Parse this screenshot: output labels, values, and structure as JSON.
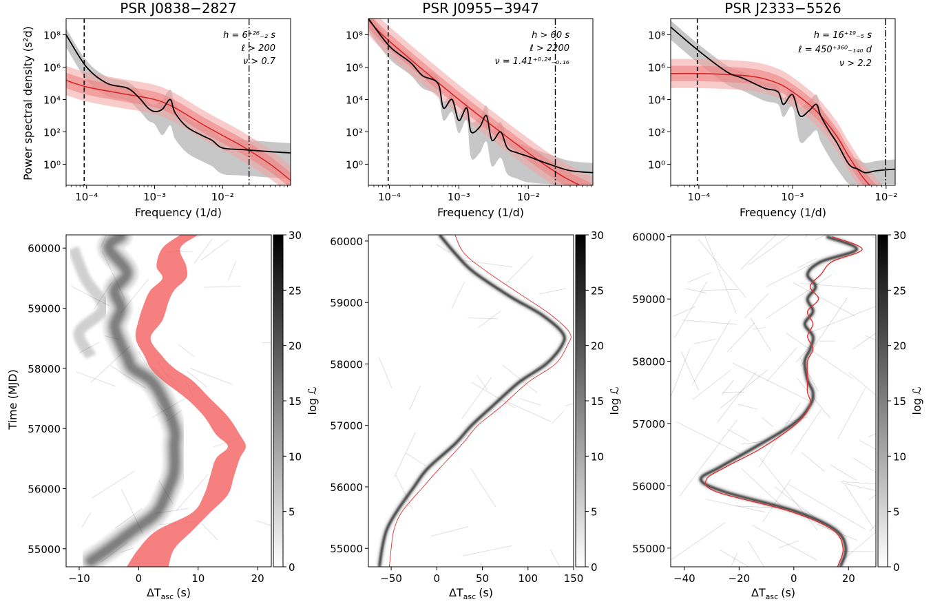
{
  "figure": {
    "panels": [
      {
        "title": "PSR J0838−2827",
        "annotations": [
          "h = 6⁺²⁶₋₂ s",
          "ℓ > 200",
          "ν > 0.7"
        ],
        "bottom_cbar_ticks": [
          "0",
          "5",
          "10",
          "15",
          "20",
          "25",
          "30"
        ]
      },
      {
        "title": "PSR J0955−3947",
        "annotations": [
          "h > 60 s",
          "ℓ > 2200",
          "ν = 1.41⁺⁰·²⁴₋₀.₁₆"
        ],
        "bottom_cbar_ticks": [
          "0",
          "5",
          "10",
          "15",
          "20",
          "25",
          "30"
        ]
      },
      {
        "title": "PSR J2333−5526",
        "annotations": [
          "h = 16⁺¹⁹₋₅ s",
          "ℓ = 450⁺³⁶⁰₋₁₄₀ d",
          "ν > 2.2"
        ],
        "bottom_cbar_ticks": [
          "0",
          "5",
          "10",
          "15",
          "20",
          "25",
          "30"
        ]
      }
    ],
    "top_ylabel": "Power spectral density (s²d)",
    "top_xlabel": "Frequency (1/d)",
    "bottom_ylabel": "Time (MJD)",
    "bottom_xlabel": "ΔT",
    "bottom_xlabel_sub": "asc",
    "bottom_xlabel_unit": "(s)",
    "cbar_label": "log ℒ",
    "psd_yticks": [
      "10⁰",
      "10²",
      "10⁴",
      "10⁶",
      "10⁸"
    ],
    "psd_xticks": [
      "10⁻⁴",
      "10⁻³",
      "10⁻²"
    ]
  },
  "chart_data": [
    {
      "type": "line",
      "panel": "PSR J0838−2827 PSD",
      "xscale": "log",
      "yscale": "log",
      "xlim": [
        5e-05,
        0.1
      ],
      "ylim": [
        0.05,
        1000000000
      ],
      "vlines": {
        "dashed": 9.23e-05,
        "dashdot": 0.0245
      },
      "series": [
        {
          "role": "data",
          "color": "#000000",
          "x": [
            5e-05,
            0.0001,
            0.0002,
            0.0004,
            0.0006,
            0.0008,
            0.001,
            0.0013,
            0.0017,
            0.002,
            0.003,
            0.005,
            0.007,
            0.01,
            0.02,
            0.05,
            0.1
          ],
          "y": [
            100000000,
            1000000,
            100000,
            50000,
            12000,
            3000,
            1800,
            2500,
            10000,
            1500,
            200,
            60,
            30,
            10,
            8,
            6,
            5
          ]
        },
        {
          "role": "model",
          "color": "#d62728",
          "x": [
            5e-05,
            0.0001,
            0.0003,
            0.001,
            0.002,
            0.005,
            0.01,
            0.02,
            0.05,
            0.1
          ],
          "y": [
            150000,
            60000,
            25000,
            10000,
            3000,
            300,
            60,
            12,
            1,
            0.1
          ]
        }
      ]
    },
    {
      "type": "line",
      "panel": "PSR J0955−3947 PSD",
      "xscale": "log",
      "yscale": "log",
      "xlim": [
        5e-05,
        0.085
      ],
      "ylim": [
        0.05,
        1000000000
      ],
      "vlines": {
        "dashed": 9.63e-05,
        "dashdot": 0.0245
      },
      "series": [
        {
          "role": "data",
          "color": "#000000",
          "x": [
            5e-05,
            0.0001,
            0.0002,
            0.0003,
            0.0005,
            0.0006,
            0.0008,
            0.001,
            0.0013,
            0.0015,
            0.002,
            0.0025,
            0.003,
            0.004,
            0.005,
            0.007,
            0.01,
            0.02,
            0.04,
            0.085
          ],
          "y": [
            1000000000,
            20000000,
            2000000,
            300000,
            100000,
            3000,
            10000,
            500,
            3000,
            100,
            200,
            1000,
            30,
            100,
            10,
            5,
            3,
            1,
            0.4,
            0.3
          ]
        },
        {
          "role": "model",
          "color": "#d62728",
          "x": [
            5e-05,
            0.0001,
            0.001,
            0.01,
            0.03,
            0.085
          ],
          "y": [
            800000000,
            40000000,
            10000,
            5,
            0.2,
            0.02
          ]
        }
      ]
    },
    {
      "type": "line",
      "panel": "PSR J2333−5526 PSD",
      "xscale": "log",
      "yscale": "log",
      "xlim": [
        5e-05,
        0.0125
      ],
      "ylim": [
        0.05,
        1000000000
      ],
      "vlines": {
        "dashed": 9.63e-05,
        "dashdot": 0.00985
      },
      "series": [
        {
          "role": "data",
          "color": "#000000",
          "x": [
            5e-05,
            0.0001,
            0.0002,
            0.0003,
            0.0005,
            0.0007,
            0.0008,
            0.001,
            0.0012,
            0.0015,
            0.0018,
            0.002,
            0.0025,
            0.003,
            0.004,
            0.005,
            0.006,
            0.008,
            0.0125
          ],
          "y": [
            300000000,
            10000000,
            500000,
            200000,
            50000,
            30000,
            5000,
            20000,
            1000,
            2000,
            5000,
            1000,
            100,
            20,
            1,
            0.5,
            0.3,
            0.4,
            0.5
          ]
        },
        {
          "role": "model",
          "color": "#d62728",
          "x": [
            5e-05,
            0.0001,
            0.0002,
            0.0004,
            0.0007,
            0.001,
            0.0015,
            0.002,
            0.003,
            0.004,
            0.006,
            0.0125
          ],
          "y": [
            400000,
            400000,
            350000,
            250000,
            100000,
            30000,
            5000,
            1000,
            50,
            3,
            0.1,
            0.001
          ]
        }
      ]
    },
    {
      "type": "heatmap",
      "panel": "PSR J0838−2827 likelihood",
      "xlim": [
        -12.2,
        22.3
      ],
      "ylim": [
        54700,
        60220
      ],
      "colorbar": {
        "label": "log ℒ",
        "range": [
          0,
          30
        ]
      },
      "ridge": {
        "t": [
          54800,
          55000,
          55300,
          55600,
          56000,
          56300,
          56700,
          57000,
          57500,
          57800,
          58000,
          58200,
          58400,
          58700,
          59000,
          59300,
          59600,
          60000,
          60200
        ],
        "dt": [
          -8,
          -5,
          -1,
          3,
          5,
          6,
          6,
          6,
          4,
          2,
          -1,
          -2,
          -3,
          -4,
          -3,
          -4,
          -2,
          -5,
          -3
        ]
      },
      "model_band": {
        "t": [
          54700,
          55000,
          55300,
          55600,
          55900,
          56200,
          56500,
          56700,
          56900,
          57200,
          57500,
          57800,
          58000,
          58200,
          58500,
          58800,
          59100,
          59300,
          59500,
          59700,
          60000,
          60220
        ],
        "lo": [
          -2,
          0,
          3,
          9,
          11,
          12,
          13,
          15,
          13,
          11,
          8,
          4,
          2,
          1,
          -0.5,
          0,
          1,
          2,
          4,
          3,
          4,
          7
        ],
        "hi": [
          5,
          6,
          9,
          12,
          15,
          16,
          17,
          18,
          17,
          15,
          12,
          9,
          6,
          4,
          2,
          4,
          5,
          6,
          8,
          8,
          7,
          10
        ]
      }
    },
    {
      "type": "heatmap",
      "panel": "PSR J0955−3947 likelihood",
      "xlim": [
        -75,
        150
      ],
      "ylim": [
        54700,
        60100
      ],
      "colorbar": {
        "label": "log ℒ",
        "range": [
          0,
          30
        ]
      },
      "ridge": {
        "t": [
          54700,
          55000,
          55300,
          55600,
          56000,
          56300,
          56700,
          57000,
          57300,
          57700,
          58000,
          58300,
          58500,
          58800,
          59100,
          59500,
          59800,
          60100
        ],
        "dt": [
          -63,
          -60,
          -55,
          -44,
          -25,
          -10,
          20,
          38,
          60,
          90,
          120,
          137,
          138,
          115,
          80,
          40,
          20,
          3
        ]
      },
      "model_line": {
        "t": [
          54700,
          55000,
          55300,
          55600,
          56000,
          56300,
          56700,
          57000,
          57300,
          57700,
          58000,
          58300,
          58500,
          58800,
          59100,
          59500,
          59800,
          60100
        ],
        "dt": [
          -52,
          -50,
          -47,
          -38,
          -15,
          3,
          28,
          45,
          70,
          100,
          130,
          143,
          146,
          125,
          95,
          55,
          30,
          20
        ]
      }
    },
    {
      "type": "heatmap",
      "panel": "PSR J2333−5526 likelihood",
      "xlim": [
        -45,
        30
      ],
      "ylim": [
        54700,
        60030
      ],
      "colorbar": {
        "label": "log ℒ",
        "range": [
          0,
          30
        ]
      },
      "ridge": {
        "t": [
          54700,
          55000,
          55300,
          55600,
          55900,
          56100,
          56300,
          56600,
          57000,
          57300,
          57500,
          57700,
          58000,
          58200,
          58400,
          58600,
          58800,
          59000,
          59200,
          59400,
          59600,
          59800,
          60000
        ],
        "dt": [
          17,
          19,
          15,
          0,
          -25,
          -34,
          -27,
          -15,
          0,
          6,
          7,
          5,
          4,
          6,
          7,
          4,
          7,
          5,
          8,
          5,
          10,
          23,
          12
        ]
      },
      "model_line": {
        "t": [
          54700,
          55000,
          55300,
          55600,
          55900,
          56100,
          56300,
          56600,
          57000,
          57300,
          57500,
          57700,
          58000,
          58200,
          58400,
          58600,
          58800,
          59000,
          59200,
          59400,
          59600,
          59800,
          60000
        ],
        "dt": [
          16,
          18,
          14,
          -2,
          -28,
          -32,
          -25,
          -12,
          1,
          6,
          5,
          5,
          5,
          7,
          5,
          7,
          5,
          9,
          6,
          10,
          14,
          25,
          14
        ]
      }
    }
  ]
}
